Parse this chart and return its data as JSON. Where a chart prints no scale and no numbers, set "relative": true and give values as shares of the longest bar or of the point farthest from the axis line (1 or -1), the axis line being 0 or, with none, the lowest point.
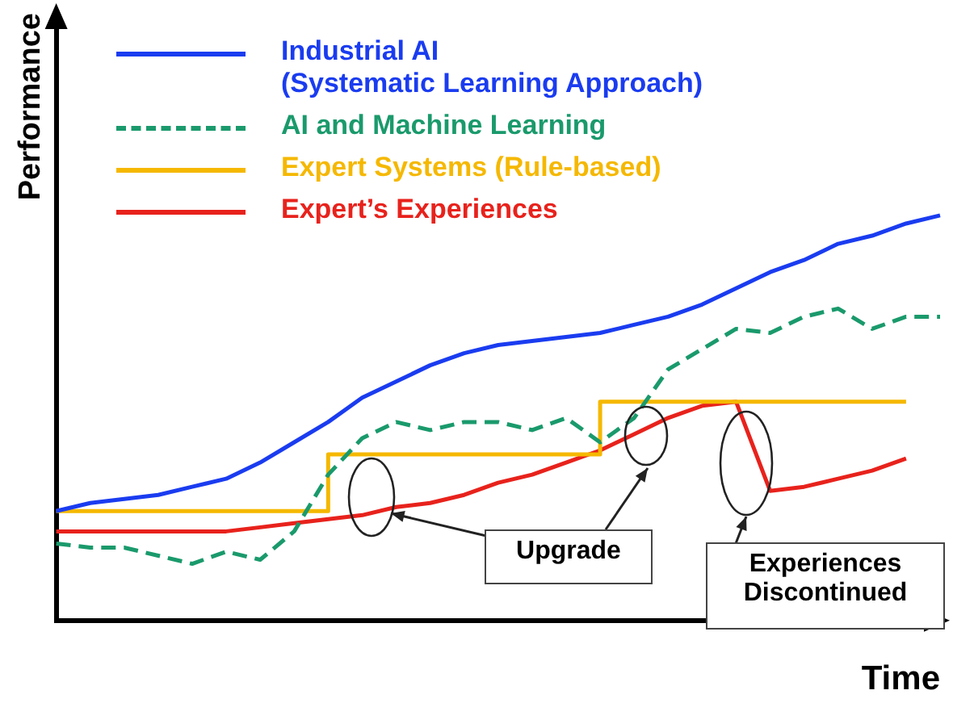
{
  "chart_data": {
    "type": "line",
    "relative": true,
    "xlabel": "Time",
    "ylabel": "Performance",
    "grid": false,
    "legend": "top left",
    "marker": "none",
    "categories": [
      null,
      null,
      null,
      null,
      null,
      null,
      null,
      null,
      null,
      null,
      null,
      null,
      null,
      null,
      null,
      null,
      null,
      null,
      null,
      null,
      null,
      null,
      null,
      null,
      null,
      null,
      null
    ],
    "series": [
      {
        "name": "Industrial AI\n(Systematic Learning Approach)",
        "color": "#1a3cf0",
        "line_style": "solid",
        "values": [
          0.27,
          0.29,
          0.3,
          0.31,
          0.33,
          0.35,
          0.39,
          0.44,
          0.49,
          0.55,
          0.59,
          0.63,
          0.66,
          0.68,
          0.69,
          0.7,
          0.71,
          0.73,
          0.75,
          0.78,
          0.82,
          0.86,
          0.89,
          0.93,
          0.95,
          0.98,
          1
        ]
      },
      {
        "name": "AI and Machine Learning",
        "color": "#1a9a6c",
        "line_style": "dashed",
        "values": [
          0.19,
          0.18,
          0.18,
          0.16,
          0.14,
          0.17,
          0.15,
          0.22,
          0.36,
          0.45,
          0.49,
          0.47,
          0.49,
          0.49,
          0.47,
          0.5,
          0.44,
          0.5,
          0.62,
          0.67,
          0.72,
          0.71,
          0.75,
          0.77,
          0.72,
          0.75,
          0.75
        ]
      },
      {
        "name": "Expert Systems (Rule-based)",
        "color": "#f5b800",
        "type": "step",
        "line_style": "solid",
        "values": [
          0.27,
          0.27,
          0.27,
          0.27,
          0.27,
          0.27,
          0.27,
          0.27,
          0.27,
          0.41,
          0.41,
          0.41,
          0.41,
          0.41,
          0.41,
          0.41,
          0.41,
          0.54,
          0.54,
          0.54,
          0.54,
          0.54,
          0.54,
          0.54,
          0.54,
          0.54,
          null
        ]
      },
      {
        "name": "Expert’s Experiences",
        "color": "#e8221c",
        "line_style": "solid",
        "values": [
          0.22,
          0.22,
          0.22,
          0.22,
          0.22,
          0.22,
          0.23,
          0.24,
          0.25,
          0.26,
          0.28,
          0.29,
          0.31,
          0.34,
          0.36,
          0.39,
          0.42,
          0.46,
          0.5,
          0.53,
          0.54,
          0.32,
          0.33,
          0.35,
          0.37,
          0.4,
          null
        ]
      }
    ],
    "annotations": [
      "Upgrade",
      "Experiences\nDiscontinued"
    ]
  }
}
